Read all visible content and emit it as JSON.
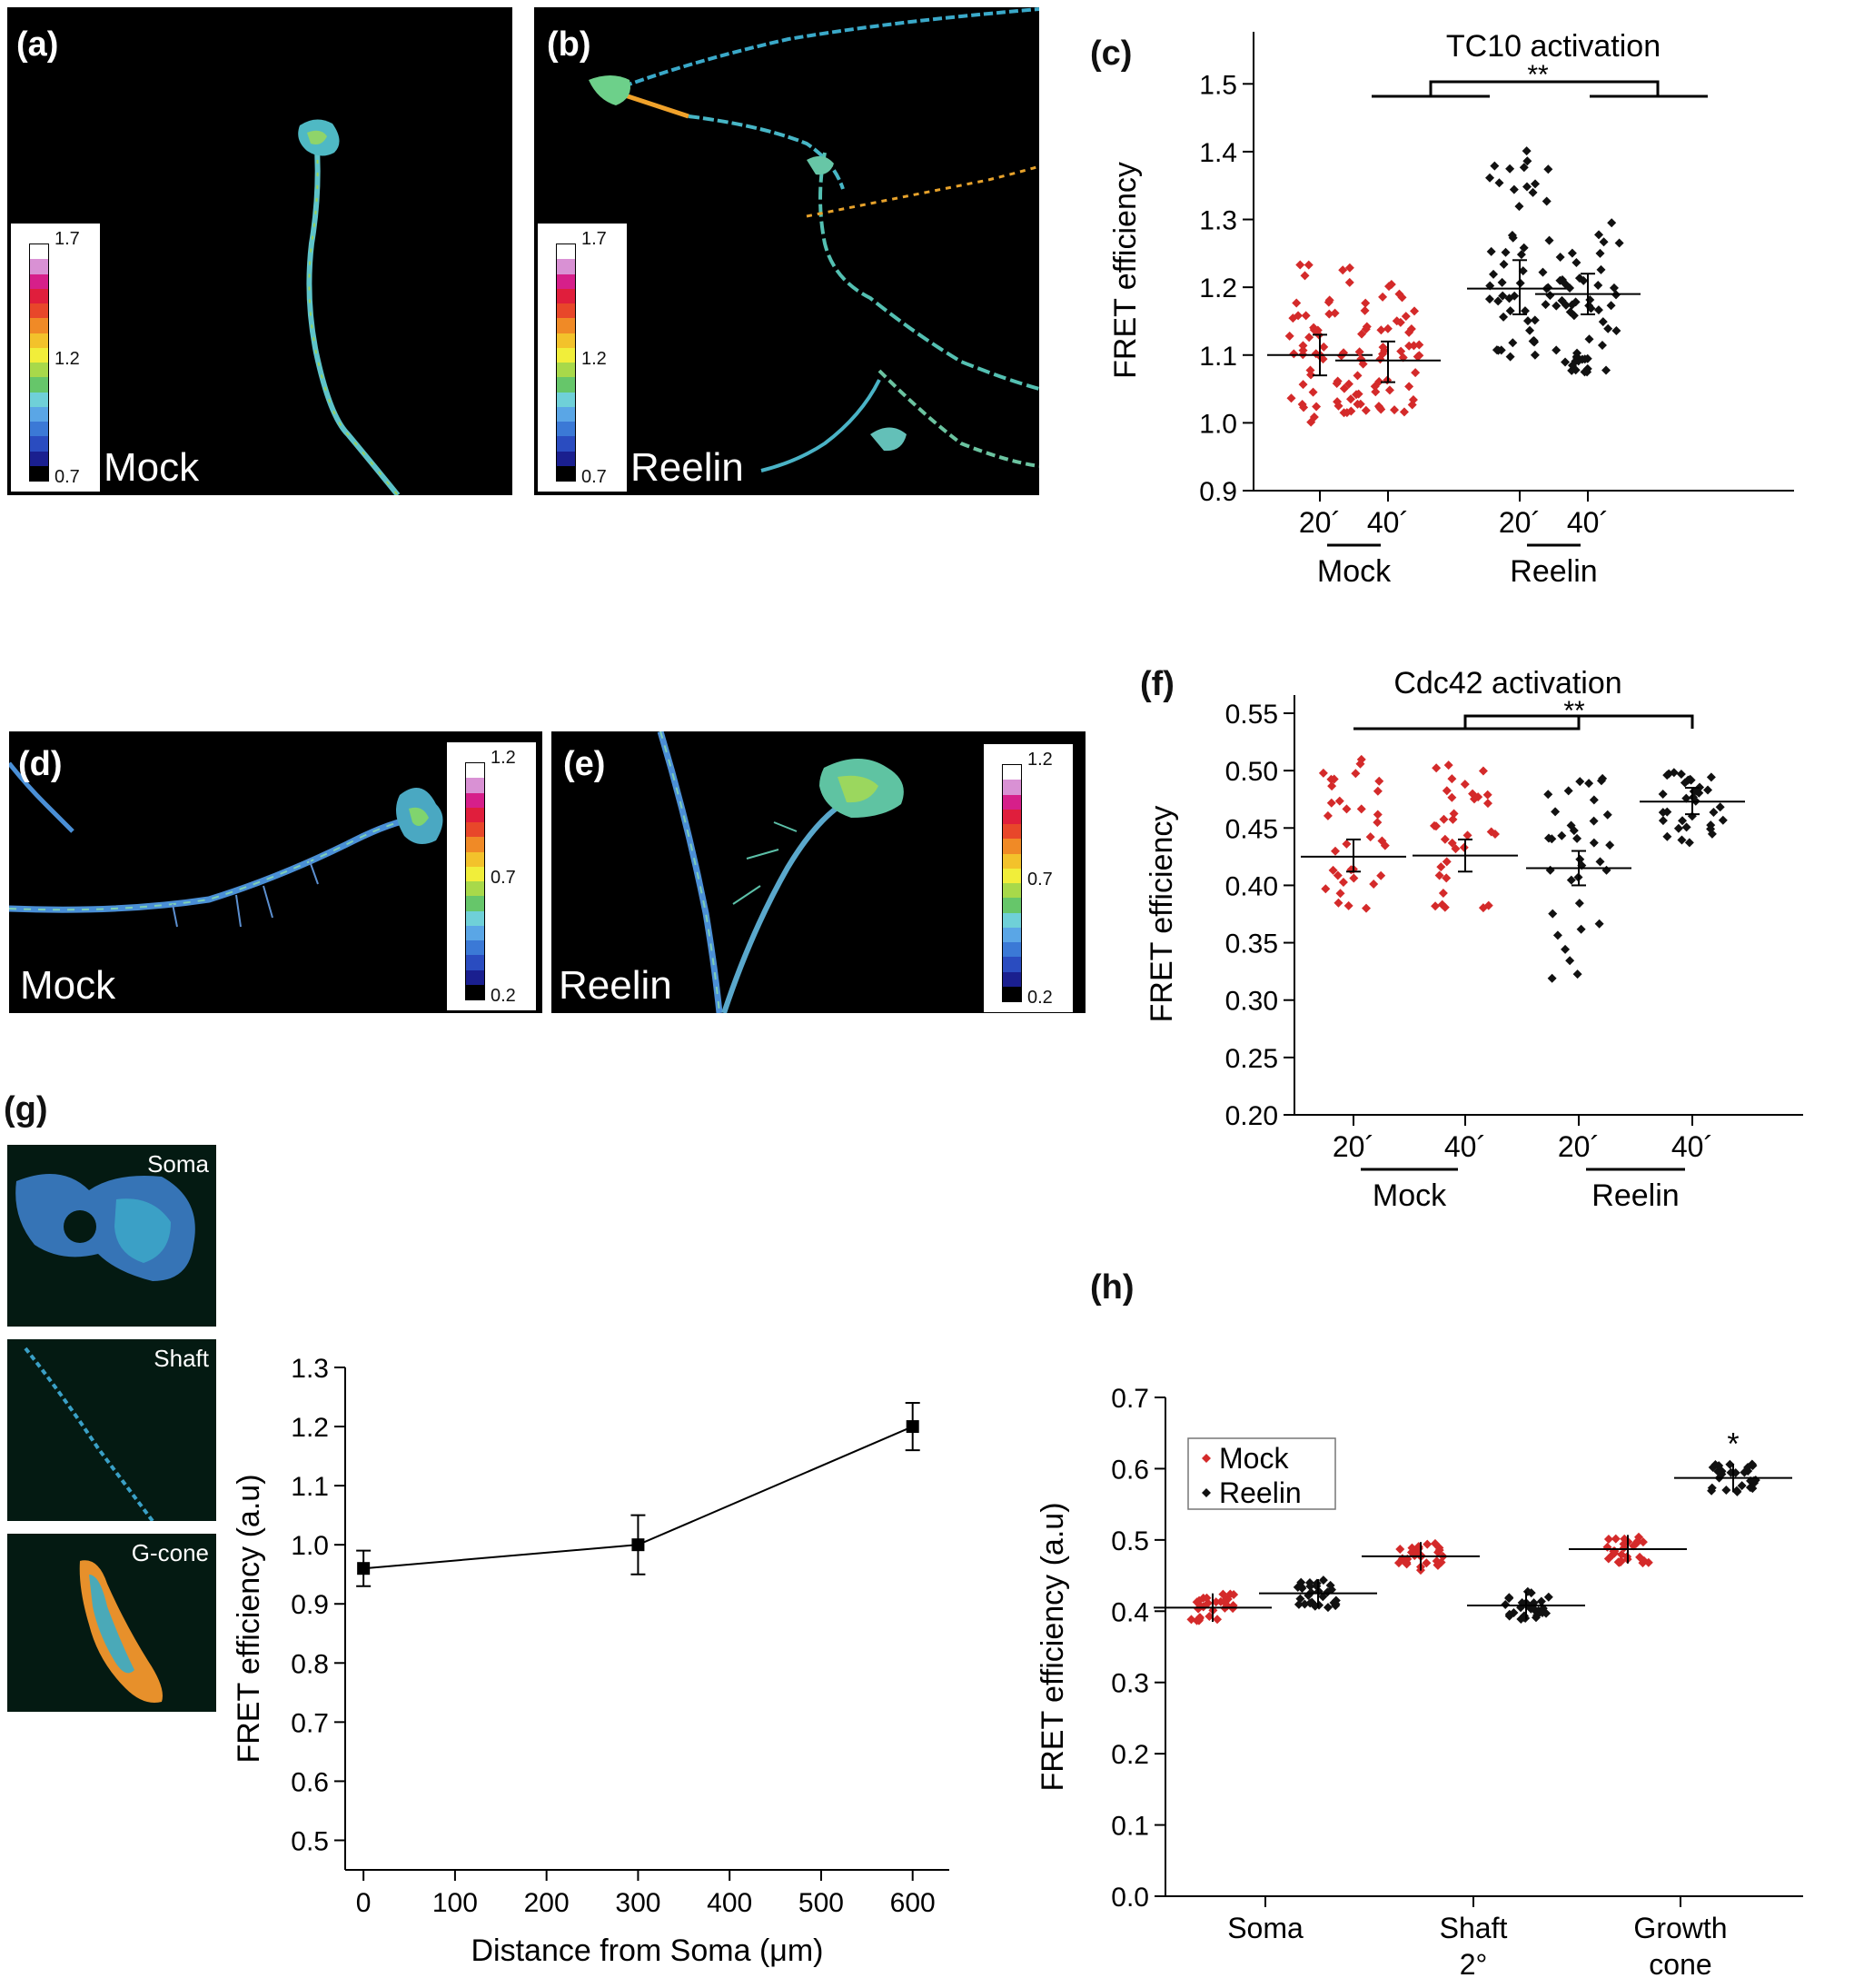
{
  "panels": {
    "a": {
      "label": "(a)",
      "caption": "Mock",
      "scale": [
        "1.7",
        "1.2",
        "0.7"
      ]
    },
    "b": {
      "label": "(b)",
      "caption": "Reelin",
      "scale": [
        "1.7",
        "1.2",
        "0.7"
      ]
    },
    "c": {
      "label": "(c)"
    },
    "d": {
      "label": "(d)",
      "caption": "Mock",
      "scale": [
        "1.2",
        "0.7",
        "0.2"
      ]
    },
    "e": {
      "label": "(e)",
      "caption": "Reelin",
      "scale": [
        "1.2",
        "0.7",
        "0.2"
      ]
    },
    "f": {
      "label": "(f)"
    },
    "g": {
      "label": "(g)",
      "insets": [
        "Soma",
        "Shaft",
        "G-cone"
      ]
    },
    "h": {
      "label": "(h)"
    }
  },
  "colors": {
    "mock": "#d42a2a",
    "reelin": "#111111",
    "scale": [
      "#000000",
      "#1a1f8f",
      "#2a4cc0",
      "#3b79d6",
      "#5aa6e6",
      "#6fd0d8",
      "#66c66a",
      "#a8d94a",
      "#f1ee3a",
      "#f3c22b",
      "#f08a26",
      "#e8472a",
      "#e01e3c",
      "#d61f8a",
      "#d991d4",
      "#ffffff"
    ]
  },
  "chart_data": [
    {
      "id": "c",
      "type": "scatter",
      "title": "TC10 activation",
      "ylabel": "FRET efficiency",
      "ylim": [
        0.9,
        1.55
      ],
      "yticks": [
        "0.9",
        "1.0",
        "1.1",
        "1.2",
        "1.3",
        "1.4",
        "1.5"
      ],
      "categories": [
        "20´",
        "40´",
        "20´",
        "40´"
      ],
      "groups": [
        "Mock",
        "Reelin"
      ],
      "significance": "**",
      "series": [
        {
          "group": "Mock",
          "time": "20´",
          "mean": 1.1,
          "sem_low": 1.07,
          "sem_high": 1.13,
          "min": 1.0,
          "max": 1.245
        },
        {
          "group": "Mock",
          "time": "40´",
          "mean": 1.092,
          "sem_low": 1.06,
          "sem_high": 1.12,
          "min": 1.015,
          "max": 1.21
        },
        {
          "group": "Reelin",
          "time": "20´",
          "mean": 1.198,
          "sem_low": 1.16,
          "sem_high": 1.24,
          "min": 1.085,
          "max": 1.415
        },
        {
          "group": "Reelin",
          "time": "40´",
          "mean": 1.19,
          "sem_low": 1.16,
          "sem_high": 1.22,
          "min": 1.075,
          "max": 1.305
        }
      ]
    },
    {
      "id": "f",
      "type": "scatter",
      "title": "Cdc42 activation",
      "ylabel": "FRET efficiency",
      "ylim": [
        0.2,
        0.55
      ],
      "yticks": [
        "0.20",
        "0.25",
        "0.30",
        "0.35",
        "0.40",
        "0.45",
        "0.50",
        "0.55"
      ],
      "categories": [
        "20´",
        "40´",
        "20´",
        "40´"
      ],
      "groups": [
        "Mock",
        "Reelin"
      ],
      "significance": "**",
      "series": [
        {
          "group": "Mock",
          "time": "20´",
          "mean": 0.425,
          "sem_low": 0.412,
          "sem_high": 0.44,
          "min": 0.38,
          "max": 0.51
        },
        {
          "group": "Mock",
          "time": "40´",
          "mean": 0.426,
          "sem_low": 0.412,
          "sem_high": 0.44,
          "min": 0.38,
          "max": 0.51
        },
        {
          "group": "Reelin",
          "time": "20´",
          "mean": 0.415,
          "sem_low": 0.4,
          "sem_high": 0.43,
          "min": 0.312,
          "max": 0.508
        },
        {
          "group": "Reelin",
          "time": "40´",
          "mean": 0.473,
          "sem_low": 0.462,
          "sem_high": 0.485,
          "min": 0.435,
          "max": 0.5
        }
      ]
    },
    {
      "id": "g",
      "type": "line",
      "xlabel": "Distance from Soma (μm)",
      "ylabel": "FRET efficiency (a.u)",
      "xlim": [
        -20,
        640
      ],
      "ylim": [
        0.45,
        1.3
      ],
      "xticks": [
        "0",
        "100",
        "200",
        "300",
        "400",
        "500",
        "600"
      ],
      "yticks": [
        "0.5",
        "0.6",
        "0.7",
        "0.8",
        "0.9",
        "1.0",
        "1.1",
        "1.2",
        "1.3"
      ],
      "x": [
        0,
        300,
        600
      ],
      "y": [
        0.96,
        1.0,
        1.2
      ],
      "err": [
        0.03,
        0.05,
        0.04
      ]
    },
    {
      "id": "h",
      "type": "scatter",
      "ylabel": "FRET efficiency (a.u)",
      "ylim": [
        0.0,
        0.7
      ],
      "yticks": [
        "0.0",
        "0.1",
        "0.2",
        "0.3",
        "0.4",
        "0.5",
        "0.6",
        "0.7"
      ],
      "categories": [
        "Soma",
        "Shaft\n2°",
        "Growth\ncone"
      ],
      "legend": [
        "Mock",
        "Reelin"
      ],
      "legend_position": "top-left",
      "significance": "*",
      "series": [
        {
          "name": "Mock",
          "values": [
            0.405,
            0.477,
            0.487
          ]
        },
        {
          "name": "Reelin",
          "values": [
            0.425,
            0.408,
            0.587
          ]
        }
      ]
    }
  ]
}
